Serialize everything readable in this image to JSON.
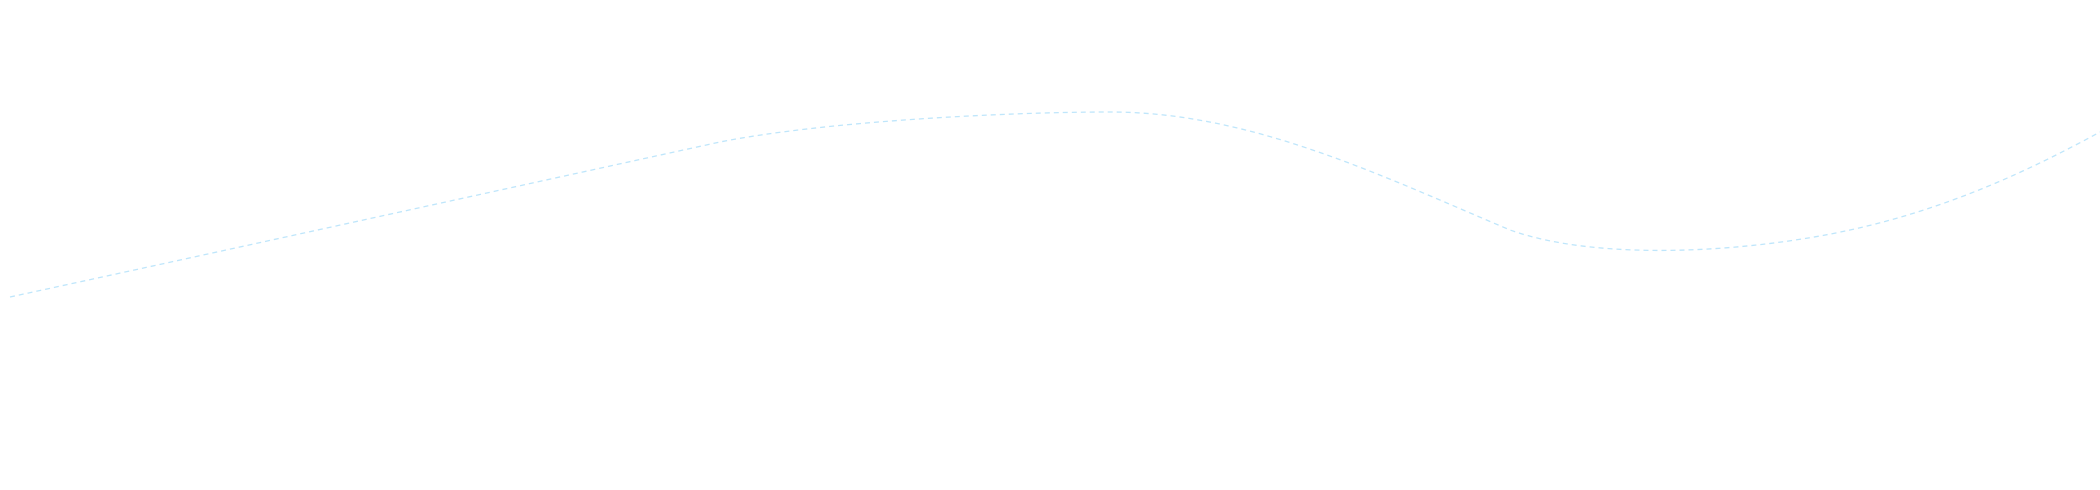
{
  "background_color": "#ffffff",
  "curve": {
    "stroke_color": "#bfe6fb",
    "style": "dashed"
  }
}
